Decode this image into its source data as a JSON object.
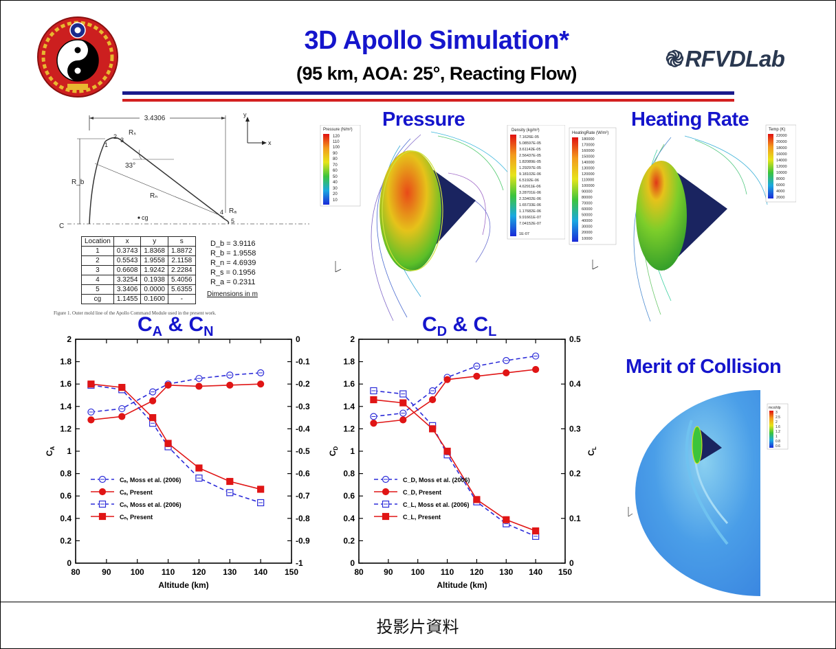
{
  "header": {
    "title": "3D Apollo Simulation*",
    "subtitle": "(95 km, AOA: 25°, Reacting Flow)",
    "lab_name": "RFVDLab",
    "lab_icon": "swirl-icon",
    "colors": {
      "title": "#1515cc",
      "rule_top": "#1a1a8c",
      "rule_bottom": "#d32020"
    }
  },
  "geometry": {
    "top_dimension": "3.4306",
    "labels": {
      "rs": "Rₛ",
      "rb": "R_b",
      "rn": "Rₙ",
      "ra": "Rₐ",
      "angle": "33°",
      "cg": "cg",
      "cl": "C",
      "axis_y": "y",
      "axis_x": "x"
    },
    "points": [
      "1",
      "2",
      "3",
      "4",
      "5"
    ],
    "table": {
      "headers": [
        "Location",
        "x",
        "y",
        "s"
      ],
      "rows": [
        [
          "1",
          "0.3743",
          "1.8368",
          "1.8872"
        ],
        [
          "2",
          "0.5543",
          "1.9558",
          "2.1158"
        ],
        [
          "3",
          "0.6608",
          "1.9242",
          "2.2284"
        ],
        [
          "4",
          "3.3254",
          "0.1938",
          "5.4056"
        ],
        [
          "5",
          "3.3406",
          "0.0000",
          "5.6355"
        ],
        [
          "cg",
          "1.1455",
          "0.1600",
          "-"
        ]
      ]
    },
    "dimensions": [
      "D_b = 3.9116",
      "R_b = 1.9558",
      "R_n = 4.6939",
      "R_s = 0.1956",
      "R_a = 0.2311"
    ],
    "units_note": "Dimensions in m",
    "figure_caption": "Figure 1.  Outer mold line of the Apollo Command Module used in the present work."
  },
  "pressure_panel": {
    "title": "Pressure",
    "legend_left": {
      "title": "Pressure (N/m²)",
      "values": [
        "120",
        "110",
        "100",
        "90",
        "80",
        "70",
        "60",
        "50",
        "40",
        "30",
        "20",
        "10"
      ]
    },
    "legend_right": {
      "title": "Density (kg/m³)",
      "values": [
        "7.1626E-05",
        "5.08597E-05",
        "3.61142E-05",
        "2.56437E-05",
        "1.82089E-05",
        "1.29297E-05",
        "9.18102E-06",
        "6.5192E-06",
        "4.62911E-06",
        "3.28701E-06",
        "2.33402E-06",
        "1.65733E-06",
        "1.17682E-06",
        "9.91661E-07",
        "7.04152E-07",
        "1E-07"
      ]
    }
  },
  "heating_panel": {
    "title": "Heating Rate",
    "legend_left": {
      "title": "HeatingRate (W/m²)",
      "values": [
        "180000",
        "170000",
        "160000",
        "150000",
        "140000",
        "130000",
        "120000",
        "110000",
        "100000",
        "90000",
        "80000",
        "70000",
        "60000",
        "50000",
        "40000",
        "30000",
        "20000",
        "10000"
      ]
    },
    "legend_right": {
      "title": "Temp (K)",
      "values": [
        "22000",
        "20000",
        "18000",
        "16000",
        "14000",
        "12000",
        "10000",
        "8000",
        "6000",
        "4000",
        "2000"
      ]
    }
  },
  "collision_panel": {
    "title": "Merit of Collision",
    "legend": {
      "title": "mcol/dp",
      "values": [
        "3",
        "2.5",
        "2",
        "1.6",
        "1.2",
        "1",
        "0.8",
        "0.6"
      ]
    }
  },
  "chart_data": [
    {
      "type": "line",
      "title_main": "C",
      "title_sub_a": "A",
      "title_mid": " & C",
      "title_sub_b": "N",
      "xlabel": "Altitude (km)",
      "ylabel": "C",
      "ylabel_sub": "A",
      "xlim": [
        80,
        150
      ],
      "ylim": [
        0,
        2
      ],
      "y2lim": [
        -1,
        0
      ],
      "x_ticks": [
        "80",
        "90",
        "100",
        "110",
        "120",
        "130",
        "140",
        "150"
      ],
      "y_ticks": [
        "0",
        "0.2",
        "0.4",
        "0.6",
        "0.8",
        "1",
        "1.2",
        "1.4",
        "1.6",
        "1.8",
        "2"
      ],
      "y2_ticks": [
        "-1",
        "-0.9",
        "-0.8",
        "-0.7",
        "-0.6",
        "-0.5",
        "-0.4",
        "-0.3",
        "-0.2",
        "-0.1",
        "0"
      ],
      "legend_position": "bottom-left",
      "series": [
        {
          "name": "Cₐ, Moss et al. (2006)",
          "axis": "left",
          "style": "dashed",
          "marker": "circle-open",
          "color": "#2a2ad8",
          "x": [
            85,
            95,
            105,
            110,
            120,
            130,
            140
          ],
          "y": [
            1.35,
            1.38,
            1.53,
            1.6,
            1.65,
            1.68,
            1.7
          ]
        },
        {
          "name": "Cₐ, Present",
          "axis": "left",
          "style": "solid",
          "marker": "circle-filled",
          "color": "#e01515",
          "x": [
            85,
            95,
            105,
            110,
            120,
            130,
            140
          ],
          "y": [
            1.28,
            1.31,
            1.45,
            1.59,
            1.58,
            1.59,
            1.6
          ]
        },
        {
          "name": "Cₙ, Moss et al. (2006)",
          "axis": "right",
          "style": "dashed",
          "marker": "square-open",
          "color": "#2a2ad8",
          "x": [
            85,
            95,
            105,
            110,
            120,
            130,
            140
          ],
          "y": [
            -0.205,
            -0.225,
            -0.375,
            -0.48,
            -0.62,
            -0.685,
            -0.73
          ]
        },
        {
          "name": "Cₙ, Present",
          "axis": "right",
          "style": "solid",
          "marker": "square-filled",
          "color": "#e01515",
          "x": [
            85,
            95,
            105,
            110,
            120,
            130,
            140
          ],
          "y": [
            -0.2,
            -0.215,
            -0.35,
            -0.465,
            -0.575,
            -0.635,
            -0.67
          ]
        }
      ]
    },
    {
      "type": "line",
      "title_main": "C",
      "title_sub_a": "D",
      "title_mid": " & C",
      "title_sub_b": "L",
      "xlabel": "Altitude (km)",
      "ylabel": "C",
      "ylabel_sub": "D",
      "y2label": "C",
      "y2label_sub": "L",
      "xlim": [
        80,
        150
      ],
      "ylim": [
        0,
        2
      ],
      "y2lim": [
        0,
        0.5
      ],
      "x_ticks": [
        "80",
        "90",
        "100",
        "110",
        "120",
        "130",
        "140",
        "150"
      ],
      "y_ticks": [
        "0",
        "0.2",
        "0.4",
        "0.6",
        "0.8",
        "1",
        "1.2",
        "1.4",
        "1.6",
        "1.8",
        "2"
      ],
      "y2_ticks": [
        "0",
        "0.1",
        "0.2",
        "0.3",
        "0.4",
        "0.5"
      ],
      "legend_position": "bottom-left",
      "series": [
        {
          "name": "C_D, Moss et al. (2006)",
          "axis": "left",
          "style": "dashed",
          "marker": "circle-open",
          "color": "#2a2ad8",
          "x": [
            85,
            95,
            105,
            110,
            120,
            130,
            140
          ],
          "y": [
            1.31,
            1.34,
            1.54,
            1.66,
            1.76,
            1.81,
            1.85
          ]
        },
        {
          "name": "C_D, Present",
          "axis": "left",
          "style": "solid",
          "marker": "circle-filled",
          "color": "#e01515",
          "x": [
            85,
            95,
            105,
            110,
            120,
            130,
            140
          ],
          "y": [
            1.25,
            1.28,
            1.46,
            1.64,
            1.67,
            1.7,
            1.73
          ]
        },
        {
          "name": "C_L, Moss et al. (2006)",
          "axis": "right",
          "style": "dashed",
          "marker": "square-open",
          "color": "#2a2ad8",
          "x": [
            85,
            95,
            105,
            110,
            120,
            130,
            140
          ],
          "y": [
            0.385,
            0.378,
            0.307,
            0.242,
            0.137,
            0.088,
            0.06
          ]
        },
        {
          "name": "C_L, Present",
          "axis": "right",
          "style": "solid",
          "marker": "square-filled",
          "color": "#e01515",
          "x": [
            85,
            95,
            105,
            110,
            120,
            130,
            140
          ],
          "y": [
            0.365,
            0.358,
            0.3,
            0.25,
            0.142,
            0.097,
            0.072
          ]
        }
      ]
    }
  ],
  "footer": {
    "caption": "投影片資料"
  }
}
